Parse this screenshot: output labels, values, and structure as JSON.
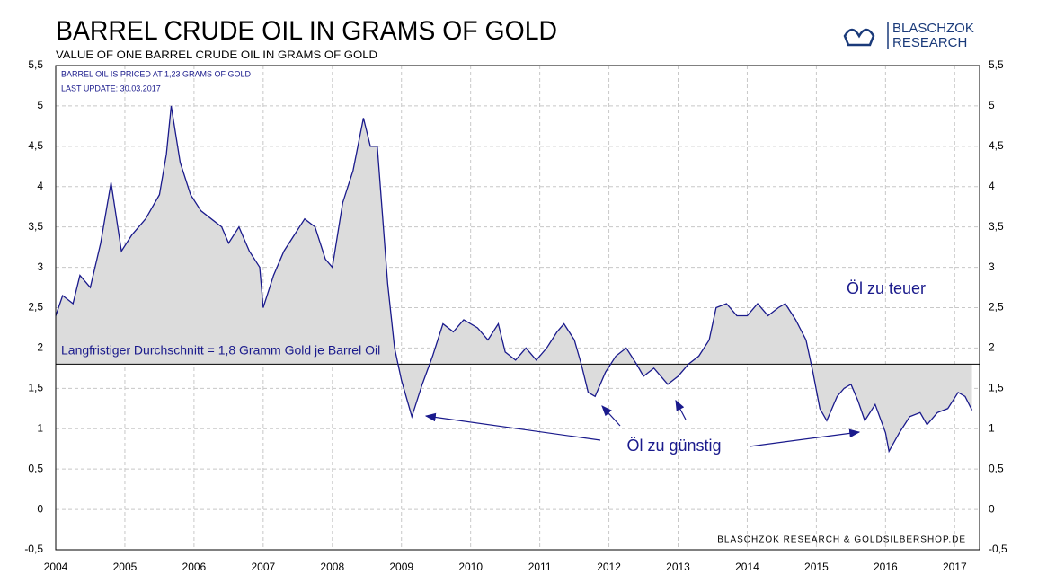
{
  "chart_data": {
    "type": "line",
    "title": "BARREL CRUDE OIL IN GRAMS OF GOLD",
    "subtitle": "VALUE OF ONE BARREL CRUDE OIL IN GRAMS OF GOLD",
    "info": [
      "BARREL OIL IS PRICED AT 1,23 GRAMS OF GOLD",
      "LAST UPDATE: 30.03.2017"
    ],
    "logo": [
      "BLASCHZOK",
      "RESEARCH"
    ],
    "source": "BLASCHZOK RESEARCH & GOLDSILBERSHOP.DE",
    "annotations": [
      "Öl zu teuer",
      "Öl zu günstig",
      "Langfristiger Durchschnitt = 1,8 Gramm Gold je Barrel Oil"
    ],
    "average": 1.8,
    "xlim": [
      2004,
      2017.36
    ],
    "xticks": [
      2004,
      2005,
      2006,
      2007,
      2008,
      2009,
      2010,
      2011,
      2012,
      2013,
      2014,
      2015,
      2016,
      2017
    ],
    "ylim": [
      -0.5,
      5.5
    ],
    "yticks": [
      {
        "value": -0.5,
        "label": "-0,5"
      },
      0,
      {
        "value": 0.5,
        "label": "0,5"
      },
      1,
      {
        "value": 1.5,
        "label": "1,5"
      },
      2,
      {
        "value": 2.5,
        "label": "2,5"
      },
      3,
      {
        "value": 3.5,
        "label": "3,5"
      },
      4,
      {
        "value": 4.5,
        "label": "4,5"
      },
      5,
      {
        "value": 5.5,
        "label": "5,5"
      }
    ],
    "grid": true,
    "x": [
      2004.0,
      2004.1,
      2004.25,
      2004.35,
      2004.5,
      2004.65,
      2004.8,
      2004.95,
      2005.1,
      2005.3,
      2005.5,
      2005.6,
      2005.67,
      2005.8,
      2005.95,
      2006.1,
      2006.25,
      2006.4,
      2006.5,
      2006.65,
      2006.8,
      2006.95,
      2007.0,
      2007.15,
      2007.3,
      2007.45,
      2007.6,
      2007.75,
      2007.9,
      2008.0,
      2008.15,
      2008.3,
      2008.45,
      2008.55,
      2008.65,
      2008.8,
      2008.9,
      2009.0,
      2009.1,
      2009.15,
      2009.3,
      2009.45,
      2009.6,
      2009.75,
      2009.9,
      2010.1,
      2010.25,
      2010.4,
      2010.5,
      2010.65,
      2010.8,
      2010.95,
      2011.1,
      2011.25,
      2011.35,
      2011.5,
      2011.6,
      2011.7,
      2011.8,
      2011.95,
      2012.1,
      2012.25,
      2012.4,
      2012.5,
      2012.65,
      2012.75,
      2012.85,
      2013.0,
      2013.15,
      2013.3,
      2013.45,
      2013.55,
      2013.7,
      2013.85,
      2014.0,
      2014.15,
      2014.3,
      2014.45,
      2014.55,
      2014.7,
      2014.85,
      2014.95,
      2015.05,
      2015.15,
      2015.3,
      2015.4,
      2015.5,
      2015.6,
      2015.7,
      2015.85,
      2016.0,
      2016.05,
      2016.2,
      2016.35,
      2016.5,
      2016.6,
      2016.75,
      2016.9,
      2017.05,
      2017.15,
      2017.25
    ],
    "series": [
      {
        "color": "#1a1a8c",
        "values": [
          2.4,
          2.65,
          2.55,
          2.9,
          2.75,
          3.3,
          4.05,
          3.2,
          3.4,
          3.6,
          3.9,
          4.4,
          5.0,
          4.3,
          3.9,
          3.7,
          3.6,
          3.5,
          3.3,
          3.5,
          3.2,
          3.0,
          2.5,
          2.9,
          3.2,
          3.4,
          3.6,
          3.5,
          3.1,
          3.0,
          3.8,
          4.2,
          4.85,
          4.5,
          4.5,
          2.8,
          2.0,
          1.6,
          1.3,
          1.15,
          1.55,
          1.9,
          2.3,
          2.2,
          2.35,
          2.25,
          2.1,
          2.3,
          1.95,
          1.85,
          2.0,
          1.85,
          2.0,
          2.2,
          2.3,
          2.1,
          1.8,
          1.45,
          1.4,
          1.7,
          1.9,
          2.0,
          1.8,
          1.65,
          1.75,
          1.65,
          1.55,
          1.65,
          1.8,
          1.9,
          2.1,
          2.5,
          2.55,
          2.4,
          2.4,
          2.55,
          2.4,
          2.5,
          2.55,
          2.35,
          2.1,
          1.7,
          1.25,
          1.1,
          1.4,
          1.5,
          1.55,
          1.35,
          1.1,
          1.3,
          0.95,
          0.72,
          0.95,
          1.15,
          1.2,
          1.05,
          1.2,
          1.25,
          1.45,
          1.4,
          1.23
        ]
      }
    ]
  }
}
